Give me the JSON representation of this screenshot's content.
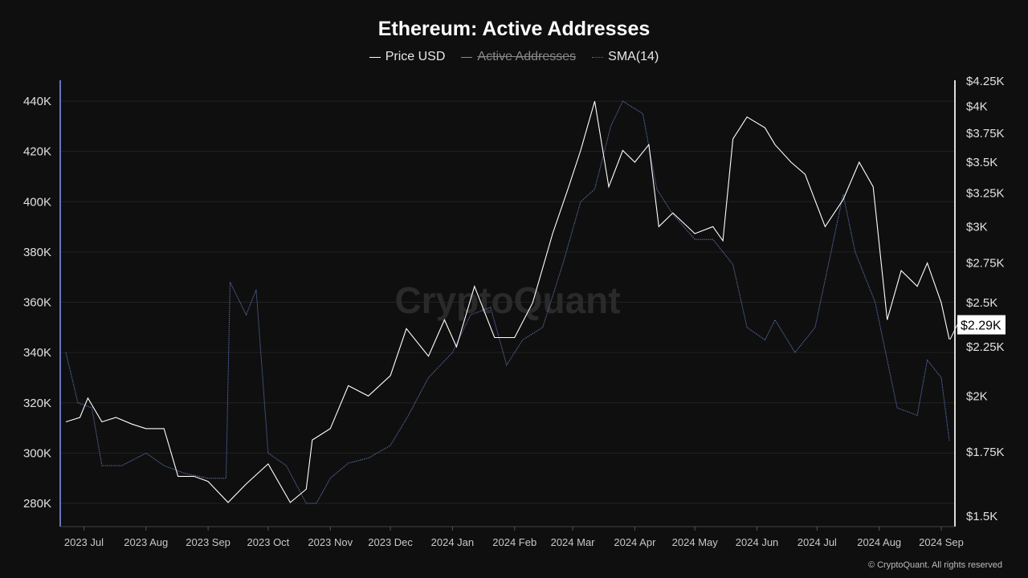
{
  "chart_data": {
    "type": "line",
    "title": "Ethereum: Active Addresses",
    "legend": [
      {
        "name": "Price USD",
        "color": "#ffffff",
        "visible": true
      },
      {
        "name": "Active Addresses",
        "color": "#7f8fb8",
        "visible": false
      },
      {
        "name": "SMA(14)",
        "color": "#5a6fa8",
        "visible": true
      }
    ],
    "legend_position": "top",
    "grid": true,
    "left_axis": {
      "ticks": [
        "280K",
        "300K",
        "320K",
        "340K",
        "360K",
        "380K",
        "400K",
        "420K",
        "440K"
      ],
      "values": [
        280,
        300,
        320,
        340,
        360,
        380,
        400,
        420,
        440
      ],
      "range": [
        275,
        445
      ]
    },
    "right_axis": {
      "scale": "log",
      "ticks": [
        "$1.5K",
        "$1.75K",
        "$2K",
        "$2.25K",
        "$2.5K",
        "$2.75K",
        "$3K",
        "$3.25K",
        "$3.5K",
        "$3.75K",
        "$4K",
        "$4.25K"
      ],
      "values": [
        1500,
        1750,
        2000,
        2250,
        2500,
        2750,
        3000,
        3250,
        3500,
        3750,
        4000,
        4250
      ],
      "range": [
        1500,
        4250
      ]
    },
    "x_ticks": [
      {
        "label": "2023 Jul",
        "date": "2023-07-01"
      },
      {
        "label": "2023 Aug",
        "date": "2023-08-01"
      },
      {
        "label": "2023 Sep",
        "date": "2023-09-01"
      },
      {
        "label": "2023 Oct",
        "date": "2023-10-01"
      },
      {
        "label": "2023 Nov",
        "date": "2023-11-01"
      },
      {
        "label": "2023 Dec",
        "date": "2023-12-01"
      },
      {
        "label": "2024 Jan",
        "date": "2024-01-01"
      },
      {
        "label": "2024 Feb",
        "date": "2024-02-01"
      },
      {
        "label": "2024 Mar",
        "date": "2024-03-01"
      },
      {
        "label": "2024 Apr",
        "date": "2024-04-01"
      },
      {
        "label": "2024 May",
        "date": "2024-05-01"
      },
      {
        "label": "2024 Jun",
        "date": "2024-06-01"
      },
      {
        "label": "2024 Jul",
        "date": "2024-07-01"
      },
      {
        "label": "2024 Aug",
        "date": "2024-08-01"
      },
      {
        "label": "2024 Sep",
        "date": "2024-09-01"
      }
    ],
    "x_range": [
      "2023-06-22",
      "2024-09-05"
    ],
    "price_usd": [
      [
        "2023-06-22",
        1880
      ],
      [
        "2023-06-29",
        1900
      ],
      [
        "2023-07-03",
        1990
      ],
      [
        "2023-07-10",
        1880
      ],
      [
        "2023-07-17",
        1900
      ],
      [
        "2023-07-25",
        1870
      ],
      [
        "2023-08-01",
        1850
      ],
      [
        "2023-08-10",
        1850
      ],
      [
        "2023-08-17",
        1650
      ],
      [
        "2023-08-25",
        1650
      ],
      [
        "2023-09-01",
        1630
      ],
      [
        "2023-09-11",
        1550
      ],
      [
        "2023-09-20",
        1620
      ],
      [
        "2023-10-01",
        1700
      ],
      [
        "2023-10-12",
        1550
      ],
      [
        "2023-10-20",
        1600
      ],
      [
        "2023-10-23",
        1800
      ],
      [
        "2023-11-01",
        1850
      ],
      [
        "2023-11-10",
        2050
      ],
      [
        "2023-11-20",
        2000
      ],
      [
        "2023-12-01",
        2100
      ],
      [
        "2023-12-09",
        2350
      ],
      [
        "2023-12-20",
        2200
      ],
      [
        "2023-12-28",
        2400
      ],
      [
        "2024-01-03",
        2250
      ],
      [
        "2024-01-12",
        2600
      ],
      [
        "2024-01-22",
        2300
      ],
      [
        "2024-02-01",
        2300
      ],
      [
        "2024-02-10",
        2500
      ],
      [
        "2024-02-20",
        2950
      ],
      [
        "2024-02-28",
        3300
      ],
      [
        "2024-03-05",
        3600
      ],
      [
        "2024-03-12",
        4050
      ],
      [
        "2024-03-19",
        3300
      ],
      [
        "2024-03-26",
        3600
      ],
      [
        "2024-04-01",
        3500
      ],
      [
        "2024-04-08",
        3650
      ],
      [
        "2024-04-13",
        3000
      ],
      [
        "2024-04-20",
        3100
      ],
      [
        "2024-05-01",
        2950
      ],
      [
        "2024-05-10",
        3000
      ],
      [
        "2024-05-15",
        2900
      ],
      [
        "2024-05-20",
        3700
      ],
      [
        "2024-05-27",
        3900
      ],
      [
        "2024-06-05",
        3800
      ],
      [
        "2024-06-10",
        3650
      ],
      [
        "2024-06-18",
        3500
      ],
      [
        "2024-06-25",
        3400
      ],
      [
        "2024-07-05",
        3000
      ],
      [
        "2024-07-14",
        3200
      ],
      [
        "2024-07-22",
        3500
      ],
      [
        "2024-07-29",
        3300
      ],
      [
        "2024-08-05",
        2400
      ],
      [
        "2024-08-12",
        2700
      ],
      [
        "2024-08-20",
        2600
      ],
      [
        "2024-08-25",
        2750
      ],
      [
        "2024-09-01",
        2500
      ],
      [
        "2024-09-05",
        2290
      ]
    ],
    "sma14_thousands": [
      [
        "2023-06-22",
        340
      ],
      [
        "2023-06-28",
        320
      ],
      [
        "2023-07-05",
        318
      ],
      [
        "2023-07-10",
        295
      ],
      [
        "2023-07-20",
        295
      ],
      [
        "2023-08-01",
        300
      ],
      [
        "2023-08-10",
        295
      ],
      [
        "2023-08-20",
        292
      ],
      [
        "2023-09-01",
        290
      ],
      [
        "2023-09-10",
        290
      ],
      [
        "2023-09-12",
        368
      ],
      [
        "2023-09-20",
        355
      ],
      [
        "2023-09-25",
        365
      ],
      [
        "2023-10-01",
        300
      ],
      [
        "2023-10-10",
        295
      ],
      [
        "2023-10-20",
        280
      ],
      [
        "2023-10-25",
        280
      ],
      [
        "2023-11-01",
        290
      ],
      [
        "2023-11-10",
        296
      ],
      [
        "2023-11-20",
        298
      ],
      [
        "2023-12-01",
        303
      ],
      [
        "2023-12-10",
        315
      ],
      [
        "2023-12-20",
        330
      ],
      [
        "2024-01-01",
        340
      ],
      [
        "2024-01-10",
        355
      ],
      [
        "2024-01-20",
        358
      ],
      [
        "2024-01-28",
        335
      ],
      [
        "2024-02-05",
        345
      ],
      [
        "2024-02-15",
        350
      ],
      [
        "2024-02-25",
        375
      ],
      [
        "2024-03-05",
        400
      ],
      [
        "2024-03-12",
        405
      ],
      [
        "2024-03-20",
        430
      ],
      [
        "2024-03-26",
        440
      ],
      [
        "2024-04-05",
        435
      ],
      [
        "2024-04-12",
        405
      ],
      [
        "2024-04-20",
        395
      ],
      [
        "2024-05-01",
        385
      ],
      [
        "2024-05-10",
        385
      ],
      [
        "2024-05-20",
        375
      ],
      [
        "2024-05-27",
        350
      ],
      [
        "2024-06-05",
        345
      ],
      [
        "2024-06-10",
        353
      ],
      [
        "2024-06-20",
        340
      ],
      [
        "2024-06-30",
        350
      ],
      [
        "2024-07-08",
        380
      ],
      [
        "2024-07-14",
        403
      ],
      [
        "2024-07-20",
        380
      ],
      [
        "2024-07-30",
        360
      ],
      [
        "2024-08-10",
        318
      ],
      [
        "2024-08-20",
        315
      ],
      [
        "2024-08-25",
        337
      ],
      [
        "2024-09-01",
        330
      ],
      [
        "2024-09-05",
        305
      ]
    ],
    "current_price_label": "$2.29K"
  },
  "watermark": "CryptoQuant",
  "footer": "© CryptoQuant. All rights reserved"
}
